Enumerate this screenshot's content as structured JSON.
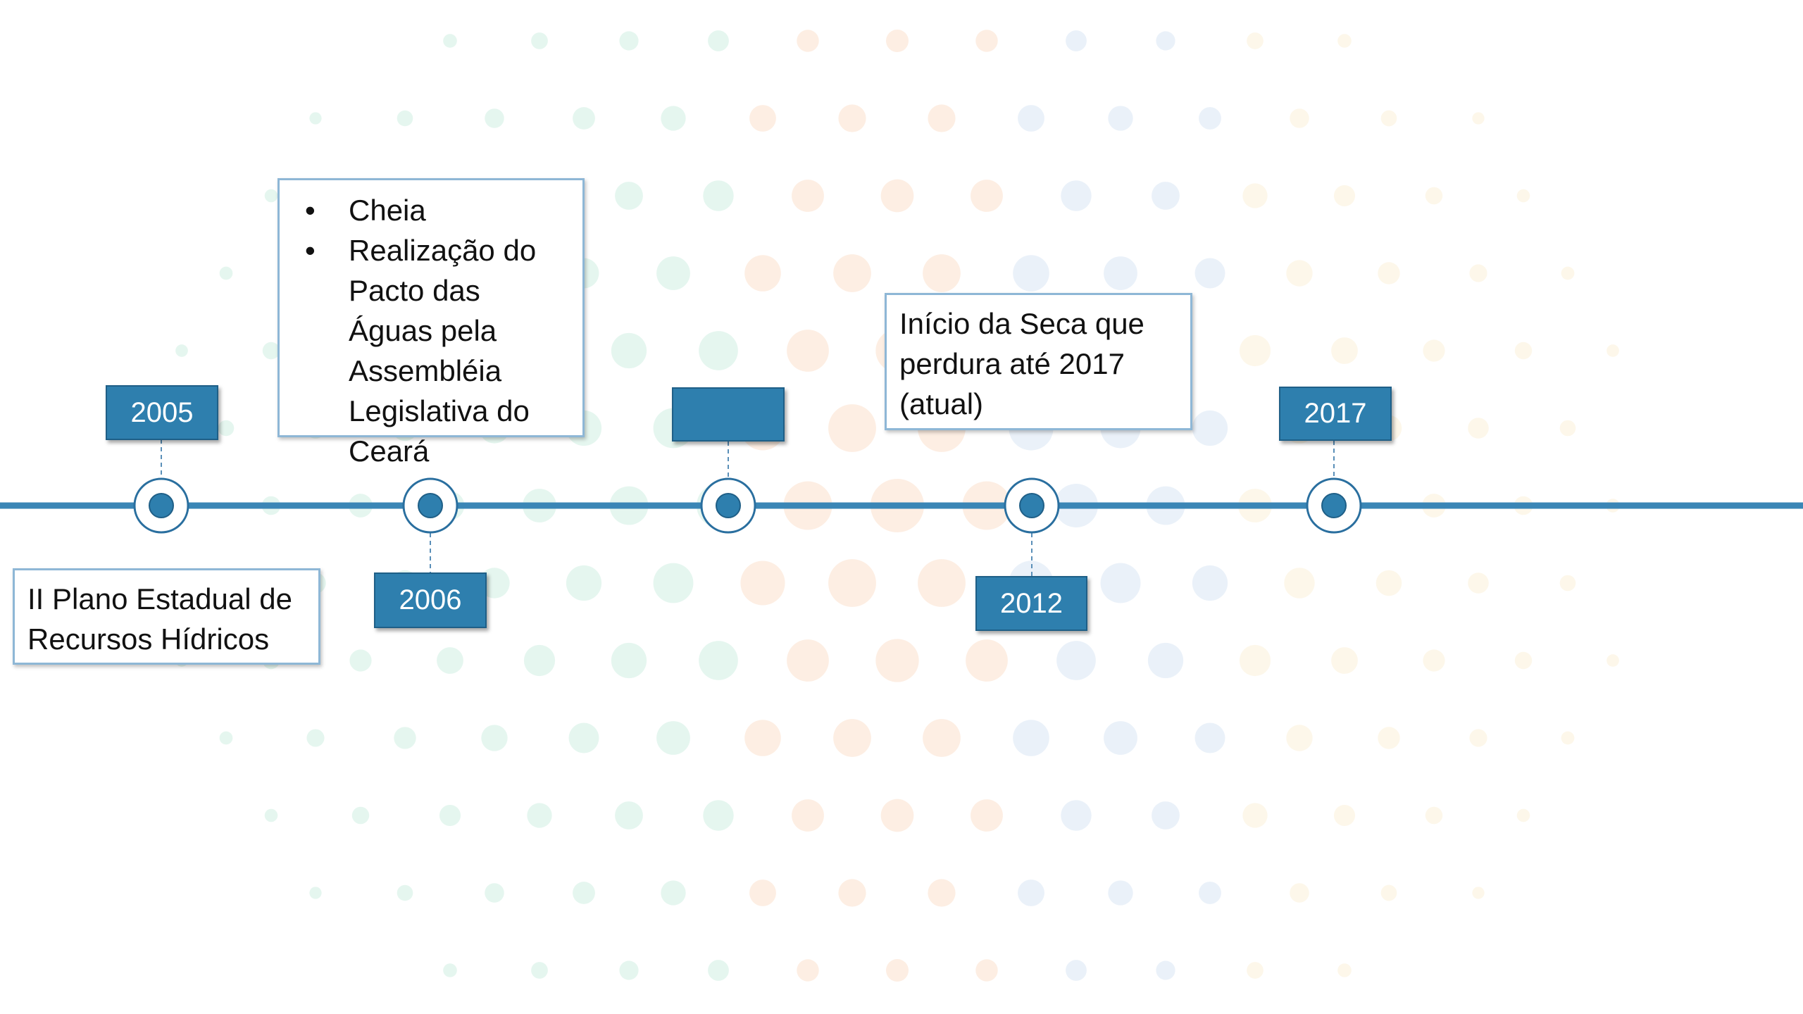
{
  "timeline": {
    "events": [
      {
        "year": "2005",
        "note": "II Plano Estadual de Recursos Hídricos"
      },
      {
        "year": "2006",
        "notes": [
          "Cheia",
          "Realização do Pacto das Águas pela Assembléia Legislativa do Ceará"
        ]
      },
      {
        "year": "2012",
        "note": "Início da Seca que perdura até 2017 (atual)"
      },
      {
        "year": "2017"
      }
    ]
  }
}
